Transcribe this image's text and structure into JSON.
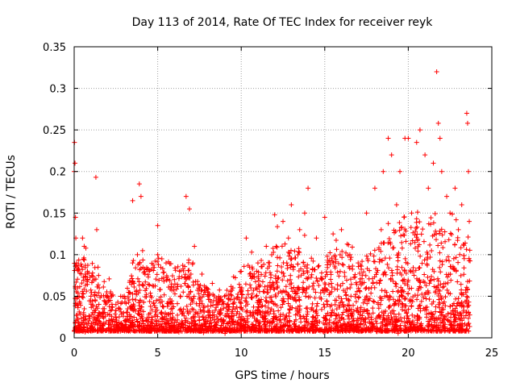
{
  "chart_data": {
    "type": "scatter",
    "title": "Day 113 of 2014, Rate Of TEC Index for receiver reyk",
    "xlabel": "GPS time / hours",
    "ylabel": "ROTI / TECUs",
    "xlim": [
      0,
      25
    ],
    "ylim": [
      0,
      0.35
    ],
    "x_ticks": [
      0,
      5,
      10,
      15,
      20,
      25
    ],
    "x_tick_labels": [
      "0",
      "5",
      "10",
      "15",
      "20",
      "25"
    ],
    "y_ticks": [
      0,
      0.05,
      0.1,
      0.15,
      0.2,
      0.25,
      0.3,
      0.35
    ],
    "y_tick_labels": [
      "0",
      "0.05",
      "0.1",
      "0.15",
      "0.2",
      "0.25",
      "0.3",
      "0.35"
    ],
    "grid": true,
    "marker": "+",
    "marker_color": "#ff0000",
    "series": [
      {
        "name": "ROTI",
        "points": [
          [
            0.0,
            0.2
          ],
          [
            0.02,
            0.235
          ],
          [
            0.05,
            0.21
          ],
          [
            0.08,
            0.145
          ],
          [
            0.1,
            0.12
          ],
          [
            0.15,
            0.09
          ],
          [
            0.2,
            0.06
          ],
          [
            0.3,
            0.05
          ],
          [
            0.5,
            0.12
          ],
          [
            0.6,
            0.11
          ],
          [
            0.8,
            0.07
          ],
          [
            1.0,
            0.05
          ],
          [
            1.3,
            0.193
          ],
          [
            1.35,
            0.13
          ],
          [
            1.5,
            0.06
          ],
          [
            2.0,
            0.05
          ],
          [
            2.5,
            0.04
          ],
          [
            3.0,
            0.05
          ],
          [
            3.5,
            0.09
          ],
          [
            3.5,
            0.165
          ],
          [
            3.9,
            0.185
          ],
          [
            4.0,
            0.17
          ],
          [
            4.5,
            0.08
          ],
          [
            5.0,
            0.1
          ],
          [
            5.0,
            0.135
          ],
          [
            5.5,
            0.09
          ],
          [
            6.0,
            0.07
          ],
          [
            6.7,
            0.17
          ],
          [
            6.9,
            0.155
          ],
          [
            7.2,
            0.11
          ],
          [
            7.5,
            0.06
          ],
          [
            8.0,
            0.05
          ],
          [
            8.5,
            0.04
          ],
          [
            9.0,
            0.05
          ],
          [
            9.5,
            0.06
          ],
          [
            10.0,
            0.08
          ],
          [
            10.3,
            0.12
          ],
          [
            10.5,
            0.085
          ],
          [
            11.0,
            0.09
          ],
          [
            11.5,
            0.11
          ],
          [
            12.0,
            0.148
          ],
          [
            12.5,
            0.14
          ],
          [
            13.0,
            0.16
          ],
          [
            13.5,
            0.13
          ],
          [
            13.8,
            0.15
          ],
          [
            14.0,
            0.18
          ],
          [
            14.5,
            0.12
          ],
          [
            15.0,
            0.145
          ],
          [
            15.5,
            0.125
          ],
          [
            16.0,
            0.13
          ],
          [
            16.5,
            0.1
          ],
          [
            17.0,
            0.09
          ],
          [
            17.5,
            0.15
          ],
          [
            18.0,
            0.18
          ],
          [
            18.5,
            0.2
          ],
          [
            18.8,
            0.24
          ],
          [
            19.0,
            0.22
          ],
          [
            19.3,
            0.16
          ],
          [
            19.5,
            0.2
          ],
          [
            19.8,
            0.24
          ],
          [
            20.0,
            0.24
          ],
          [
            20.2,
            0.15
          ],
          [
            20.5,
            0.235
          ],
          [
            20.7,
            0.25
          ],
          [
            21.0,
            0.22
          ],
          [
            21.2,
            0.18
          ],
          [
            21.5,
            0.21
          ],
          [
            21.7,
            0.32
          ],
          [
            21.8,
            0.258
          ],
          [
            21.9,
            0.24
          ],
          [
            22.0,
            0.2
          ],
          [
            22.3,
            0.17
          ],
          [
            22.5,
            0.15
          ],
          [
            22.8,
            0.18
          ],
          [
            23.0,
            0.13
          ],
          [
            23.2,
            0.16
          ],
          [
            23.5,
            0.27
          ],
          [
            23.55,
            0.258
          ],
          [
            23.6,
            0.2
          ],
          [
            23.65,
            0.14
          ]
        ],
        "density_envelope": {
          "description": "upper bound of dense marker band vs time",
          "x": [
            0,
            0.5,
            1,
            1.5,
            2,
            2.5,
            3,
            3.5,
            4,
            4.5,
            5,
            5.5,
            6,
            6.5,
            7,
            7.5,
            8,
            8.5,
            9,
            9.5,
            10,
            10.5,
            11,
            11.5,
            12,
            12.5,
            13,
            13.5,
            14,
            14.5,
            15,
            15.5,
            16,
            16.5,
            17,
            17.5,
            18,
            18.5,
            19,
            19.5,
            20,
            20.5,
            21,
            21.5,
            22,
            22.5,
            23,
            23.5,
            23.7
          ],
          "y": [
            0.09,
            0.1,
            0.08,
            0.07,
            0.06,
            0.05,
            0.05,
            0.08,
            0.1,
            0.09,
            0.1,
            0.08,
            0.07,
            0.09,
            0.1,
            0.07,
            0.06,
            0.05,
            0.05,
            0.06,
            0.07,
            0.09,
            0.08,
            0.1,
            0.12,
            0.11,
            0.1,
            0.11,
            0.1,
            0.09,
            0.1,
            0.11,
            0.11,
            0.1,
            0.09,
            0.1,
            0.12,
            0.13,
            0.13,
            0.14,
            0.13,
            0.14,
            0.14,
            0.15,
            0.14,
            0.13,
            0.12,
            0.14,
            0.12
          ]
        }
      }
    ]
  }
}
